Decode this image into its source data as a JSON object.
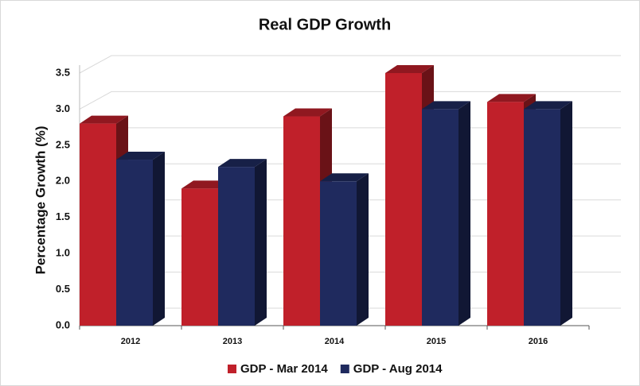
{
  "chart_data": {
    "type": "bar",
    "title": "Real GDP Growth",
    "y_label": "Percentage Growth (%)",
    "categories": [
      "2012",
      "2013",
      "2014",
      "2015",
      "2016"
    ],
    "series": [
      {
        "name": "GDP - Mar 2014",
        "color": "#c0202a",
        "values": [
          2.8,
          1.9,
          2.9,
          3.5,
          3.1
        ]
      },
      {
        "name": "GDP - Aug 2014",
        "color": "#1f2a5e",
        "values": [
          2.3,
          2.2,
          2.0,
          3.0,
          3.0
        ]
      }
    ],
    "ylim": [
      0,
      3.5
    ],
    "yticks": [
      {
        "value": 0,
        "label": "0.0"
      },
      {
        "value": 0.5,
        "label": "0.5"
      },
      {
        "value": 1,
        "label": "1.0"
      },
      {
        "value": 1.5,
        "label": "1.5"
      },
      {
        "value": 2,
        "label": "2.0"
      },
      {
        "value": 2.5,
        "label": "2.5"
      },
      {
        "value": 3,
        "label": "3.0"
      },
      {
        "value": 3.5,
        "label": "3.5"
      }
    ],
    "grid": true,
    "legend": "bottom"
  }
}
